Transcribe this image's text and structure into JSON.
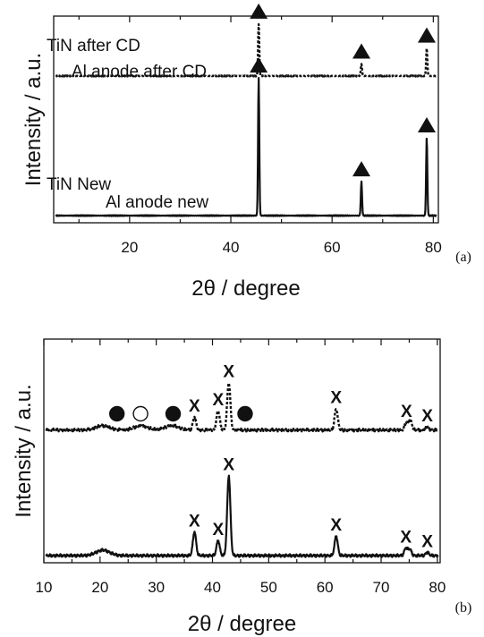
{
  "chart_data": [
    {
      "type": "line",
      "panel_label": "(a)",
      "xlabel": "2θ  / degree",
      "ylabel": "Intensity / a.u.",
      "xlim": [
        5,
        81
      ],
      "xticks": [
        20,
        40,
        60,
        80
      ],
      "grid": false,
      "legend": "none",
      "series": [
        {
          "name": "Al anode after CD",
          "style": "dashed",
          "baseline_fraction": 0.7,
          "peaks": [
            {
              "x": 45.5,
              "rel_height": 0.26,
              "marker": "triangle"
            },
            {
              "x": 65.8,
              "rel_height": 0.06,
              "marker": "triangle"
            },
            {
              "x": 78.7,
              "rel_height": 0.14,
              "marker": "triangle"
            }
          ]
        },
        {
          "name": "Al anode new",
          "style": "solid",
          "baseline_fraction": 0.0,
          "peaks": [
            {
              "x": 45.5,
              "rel_height": 0.69,
              "marker": "triangle"
            },
            {
              "x": 65.8,
              "rel_height": 0.17,
              "marker": "triangle"
            },
            {
              "x": 78.7,
              "rel_height": 0.39,
              "marker": "triangle"
            }
          ]
        }
      ]
    },
    {
      "type": "line",
      "panel_label": "(b)",
      "xlabel": "2θ  / degree",
      "ylabel": "Intensity / a.u.",
      "xlim": [
        10,
        80.5
      ],
      "xticks": [
        10,
        20,
        30,
        40,
        50,
        60,
        70,
        80
      ],
      "grid": false,
      "legend": "none",
      "marker_labels": {
        "x": "X"
      },
      "series": [
        {
          "name": "TiN after CD",
          "style": "dashed",
          "baseline_fraction": 0.58,
          "peaks": [
            {
              "x": 36.8,
              "rel_height": 0.06,
              "marker": "x"
            },
            {
              "x": 41.0,
              "rel_height": 0.09,
              "marker": "x"
            },
            {
              "x": 42.9,
              "rel_height": 0.22,
              "marker": "x"
            },
            {
              "x": 62.0,
              "rel_height": 0.1,
              "marker": "x"
            },
            {
              "x": 74.5,
              "rel_height": 0.035,
              "marker": "x"
            },
            {
              "x": 75.2,
              "rel_height": 0.045,
              "marker": "none"
            },
            {
              "x": 78.2,
              "rel_height": 0.015,
              "marker": "x"
            },
            {
              "x": 20.5,
              "rel_height": 0.02,
              "marker": "none"
            },
            {
              "x": 27.3,
              "rel_height": 0.02,
              "marker": "none"
            },
            {
              "x": 32.8,
              "rel_height": 0.02,
              "marker": "none"
            }
          ],
          "phase_markers": [
            {
              "x": 23.0,
              "kind": "filled-circle"
            },
            {
              "x": 27.2,
              "kind": "open-circle"
            },
            {
              "x": 33.0,
              "kind": "filled-circle"
            },
            {
              "x": 45.8,
              "kind": "filled-circle"
            }
          ]
        },
        {
          "name": "TiN New",
          "style": "solid",
          "baseline_fraction": 0.0,
          "peaks": [
            {
              "x": 20.5,
              "rel_height": 0.025,
              "marker": "none"
            },
            {
              "x": 36.8,
              "rel_height": 0.11,
              "marker": "x"
            },
            {
              "x": 41.0,
              "rel_height": 0.07,
              "marker": "x"
            },
            {
              "x": 42.9,
              "rel_height": 0.37,
              "marker": "x"
            },
            {
              "x": 62.0,
              "rel_height": 0.09,
              "marker": "x"
            },
            {
              "x": 74.4,
              "rel_height": 0.035,
              "marker": "x"
            },
            {
              "x": 75.1,
              "rel_height": 0.03,
              "marker": "none"
            },
            {
              "x": 78.2,
              "rel_height": 0.015,
              "marker": "x"
            }
          ]
        }
      ]
    }
  ]
}
